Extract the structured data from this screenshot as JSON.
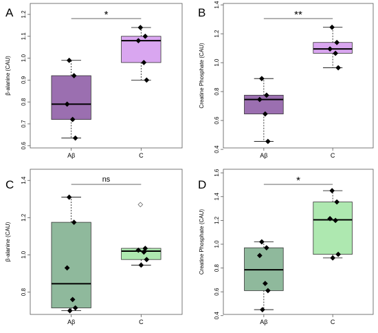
{
  "chart_data": [
    {
      "type": "box",
      "panel": "A",
      "ylabel": "β-alanine (CAU)",
      "categories": [
        "Aβ",
        "C"
      ],
      "ylim": [
        0.59,
        1.25
      ],
      "yticks": [
        0.6,
        0.7,
        0.8,
        0.9,
        1.0,
        1.1,
        1.2
      ],
      "ytick_labels": [
        "0.6",
        "0.7",
        "0.8",
        "0.9",
        "1.0",
        "1.1",
        "1.2"
      ],
      "significance": "*",
      "boxes": [
        {
          "category": "Aβ",
          "whisker_low": 0.635,
          "q1": 0.72,
          "median": 0.79,
          "q3": 0.92,
          "whisker_high": 0.99,
          "color": "#9b6fb0",
          "points": [
            0.99,
            0.92,
            0.79,
            0.72,
            0.635
          ],
          "open_points": []
        },
        {
          "category": "C",
          "whisker_low": 0.9,
          "q1": 0.98,
          "median": 1.08,
          "q3": 1.1,
          "whisker_high": 1.14,
          "color": "#d9a6f0",
          "points": [
            1.14,
            1.1,
            1.08,
            0.98,
            0.9
          ],
          "open_points": []
        }
      ]
    },
    {
      "type": "box",
      "panel": "B",
      "ylabel": "Creatine Phosphate (CAU)",
      "categories": [
        "Aβ",
        "C"
      ],
      "ylim": [
        0.41,
        1.41
      ],
      "yticks": [
        0.4,
        0.6,
        0.8,
        1.0,
        1.2,
        1.4
      ],
      "ytick_labels": [
        "0.4",
        "0.6",
        "0.8",
        "1.0",
        "1.2",
        "1.4"
      ],
      "significance": "**",
      "boxes": [
        {
          "category": "Aβ",
          "whisker_low": 0.455,
          "q1": 0.645,
          "median": 0.745,
          "q3": 0.775,
          "whisker_high": 0.89,
          "color": "#9b6fb0",
          "points": [
            0.89,
            0.775,
            0.745,
            0.645,
            0.455
          ],
          "open_points": []
        },
        {
          "category": "C",
          "whisker_low": 0.965,
          "q1": 1.065,
          "median": 1.095,
          "q3": 1.14,
          "whisker_high": 1.245,
          "color": "#d9a6f0",
          "points": [
            1.245,
            1.14,
            1.095,
            1.065,
            0.965
          ],
          "open_points": []
        }
      ]
    },
    {
      "type": "box",
      "panel": "C",
      "ylabel": "β-alanine (CAU)",
      "categories": [
        "Aβ",
        "C"
      ],
      "ylim": [
        0.68,
        1.46
      ],
      "yticks": [
        0.8,
        1.0,
        1.2,
        1.4
      ],
      "ytick_labels": [
        "0.8",
        "1.0",
        "1.2",
        "1.4"
      ],
      "significance": "ns",
      "boxes": [
        {
          "category": "Aβ",
          "whisker_low": 0.7,
          "q1": 0.715,
          "median": 0.845,
          "q3": 1.175,
          "whisker_high": 1.31,
          "color": "#8fb99c",
          "points": [
            1.31,
            1.175,
            0.93,
            0.76,
            0.715,
            0.7
          ],
          "open_points": []
        },
        {
          "category": "C",
          "whisker_low": 0.945,
          "q1": 0.975,
          "median": 1.02,
          "q3": 1.035,
          "whisker_high": 1.035,
          "color": "#aee8b0",
          "points": [
            1.27,
            1.035,
            1.025,
            1.015,
            0.975,
            0.945
          ],
          "open_points": [
            1.27
          ]
        }
      ]
    },
    {
      "type": "box",
      "panel": "D",
      "ylabel": "Creatine Phosphate (CAU)",
      "categories": [
        "Aβ",
        "C"
      ],
      "ylim": [
        0.41,
        1.63
      ],
      "yticks": [
        0.4,
        0.6,
        0.8,
        1.0,
        1.2,
        1.4,
        1.6
      ],
      "ytick_labels": [
        "0.4",
        "0.6",
        "0.8",
        "1.0",
        "1.2",
        "1.4",
        "1.6"
      ],
      "significance": "*",
      "boxes": [
        {
          "category": "Aβ",
          "whisker_low": 0.45,
          "q1": 0.61,
          "median": 0.785,
          "q3": 0.97,
          "whisker_high": 1.02,
          "color": "#8fb99c",
          "points": [
            1.02,
            0.97,
            0.905,
            0.67,
            0.61,
            0.45
          ],
          "open_points": []
        },
        {
          "category": "C",
          "whisker_low": 0.885,
          "q1": 0.915,
          "median": 1.205,
          "q3": 1.355,
          "whisker_high": 1.45,
          "color": "#aee8b0",
          "points": [
            1.45,
            1.355,
            1.215,
            1.2,
            0.915,
            0.885
          ],
          "open_points": []
        }
      ]
    }
  ]
}
